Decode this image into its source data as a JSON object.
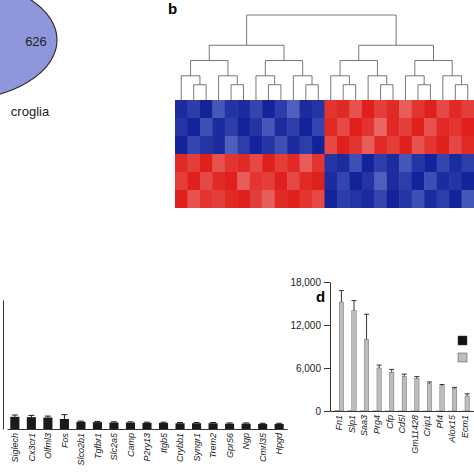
{
  "chart_data": [
    {
      "type": "venn",
      "sets": [
        {
          "label": "croglia",
          "size": 626,
          "color": "#8e97db"
        }
      ]
    },
    {
      "type": "heatmap",
      "title": "b",
      "cells": [
        [
          -1.2,
          -1.0,
          -1.3,
          -0.7,
          -1.1,
          -1.2,
          -0.9,
          -1.3,
          -1.0,
          -0.6,
          -1.2,
          -1.1,
          1.1,
          1.2,
          0.8,
          1.3,
          1.0,
          1.2,
          0.7,
          1.1,
          1.3,
          0.9,
          1.2,
          1.0
        ],
        [
          -1.1,
          -1.3,
          -0.8,
          -1.2,
          -1.0,
          -1.3,
          -1.1,
          -0.7,
          -1.2,
          -1.0,
          -1.3,
          -0.9,
          1.2,
          0.9,
          1.3,
          1.1,
          0.6,
          1.2,
          1.0,
          1.3,
          0.8,
          1.2,
          1.1,
          1.3
        ],
        [
          -1.3,
          -0.9,
          -1.1,
          -1.2,
          -0.6,
          -1.0,
          -1.3,
          -1.1,
          -0.8,
          -1.2,
          -1.0,
          -1.3,
          0.9,
          1.3,
          1.1,
          0.7,
          1.2,
          1.0,
          1.3,
          0.8,
          1.1,
          1.3,
          0.9,
          1.2
        ],
        [
          1.2,
          1.0,
          1.3,
          0.8,
          1.1,
          1.2,
          0.9,
          1.3,
          1.0,
          1.2,
          0.7,
          1.1,
          -1.1,
          -1.2,
          -0.8,
          -1.3,
          -1.0,
          -1.2,
          -0.7,
          -1.1,
          -1.3,
          -0.9,
          -1.2,
          -1.0
        ],
        [
          1.0,
          1.3,
          0.9,
          1.2,
          1.3,
          0.7,
          1.1,
          1.0,
          1.3,
          0.9,
          1.2,
          1.3,
          -1.2,
          -0.9,
          -1.3,
          -1.1,
          -0.6,
          -1.2,
          -1.0,
          -1.3,
          -0.8,
          -1.2,
          -1.1,
          -1.3
        ],
        [
          1.3,
          0.8,
          1.1,
          1.0,
          1.2,
          1.3,
          1.0,
          0.7,
          1.2,
          1.3,
          1.1,
          0.9,
          -1.3,
          -1.0,
          -1.1,
          -1.2,
          -0.9,
          -1.3,
          -1.1,
          -0.8,
          -1.2,
          -1.0,
          -1.3,
          -0.7
        ]
      ]
    },
    {
      "type": "bar",
      "categories": [
        "Siglech",
        "Cx3cr1",
        "Olfml3",
        "Fos",
        "Slco2b1",
        "Tgfbr1",
        "Slc2a5",
        "Camp",
        "P2ry13",
        "Itgb5",
        "Crybb1",
        "Syngr1",
        "Trem2",
        "Gpr56",
        "Ngp",
        "Cmrl35",
        "Hpgd"
      ],
      "series": [
        {
          "color": "#1a1a1a",
          "values": [
            1700,
            1650,
            1600,
            1400,
            1000,
            950,
            900,
            900,
            850,
            850,
            800,
            800,
            800,
            750,
            750,
            700,
            700
          ],
          "errors": [
            250,
            250,
            200,
            600,
            100,
            100,
            100,
            100,
            100,
            100,
            100,
            100,
            100,
            100,
            100,
            100,
            100
          ]
        }
      ],
      "ylim": [
        0,
        18000
      ],
      "tick_labels": "x"
    },
    {
      "type": "bar",
      "title": "d",
      "categories": [
        "Fn1",
        "Slp1",
        "Saa3",
        "Prg4",
        "Cfp",
        "Cd5l",
        "Gm11428",
        "Crip1",
        "Pf4",
        "Alox15",
        "Ecm1"
      ],
      "series": [
        {
          "color": "#111111",
          "values": [
            60,
            50,
            40,
            40,
            30,
            30,
            30,
            30,
            20,
            20,
            20
          ]
        },
        {
          "color": "#bdbdbd",
          "values": [
            15200,
            14000,
            10000,
            6000,
            5400,
            4800,
            4500,
            3800,
            3500,
            3100,
            2100
          ],
          "errors": [
            1600,
            1400,
            3500,
            400,
            400,
            350,
            300,
            250,
            200,
            200,
            300
          ]
        }
      ],
      "ylim": [
        0,
        18000
      ],
      "yticks": [
        0,
        {
          "value": 6000,
          "label": "6,000"
        },
        {
          "value": 12000,
          "label": "12,000"
        },
        {
          "value": 18000,
          "label": "18,000"
        }
      ],
      "legend": "top-right"
    }
  ]
}
